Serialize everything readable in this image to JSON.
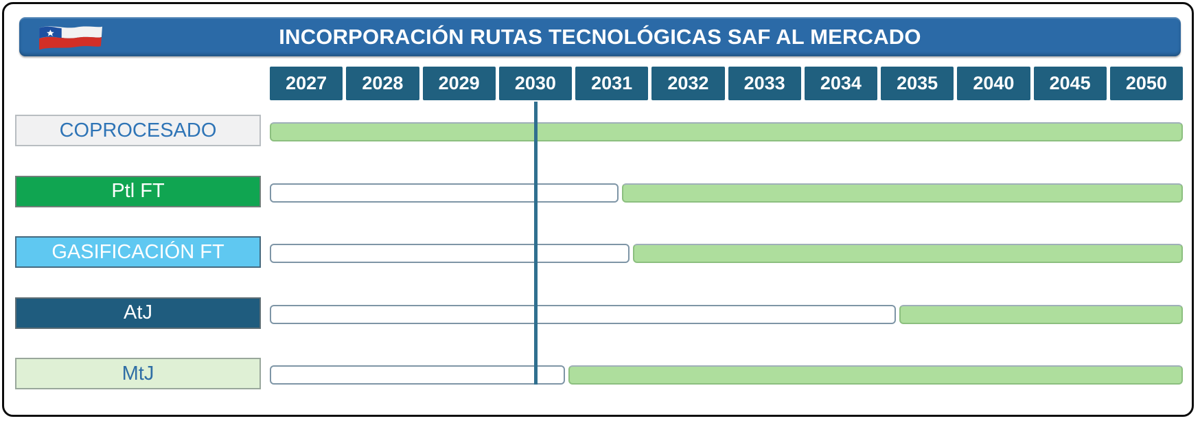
{
  "header": {
    "title": "INCORPORACIÓN  RUTAS TECNOLÓGICAS SAF AL MERCADO",
    "flag": "chile-flag",
    "bar_color": "#2B6AA7",
    "text_color": "#FFFFFF"
  },
  "timeline": {
    "years": [
      "2027",
      "2028",
      "2029",
      "2030",
      "2031",
      "2032",
      "2033",
      "2034",
      "2035",
      "2040",
      "2045",
      "2050"
    ],
    "cell_color": "#20607F",
    "text_color": "#FFFFFF"
  },
  "chart_data": {
    "type": "gantt",
    "title": "INCORPORACIÓN RUTAS TECNOLÓGICAS SAF AL MERCADO",
    "x_categories": [
      "2027",
      "2028",
      "2029",
      "2030",
      "2031",
      "2032",
      "2033",
      "2034",
      "2035",
      "2040",
      "2045",
      "2050"
    ],
    "x_axis_note": "equal-width category columns; col units: 0 = left edge of 2027 column, 12 = right edge of 2050 column",
    "legend": null,
    "milestone_line": {
      "label": "2030",
      "at_col": 3.5,
      "color": "#2F6F8F"
    },
    "bar_styles": {
      "pending": {
        "fill": "#FFFFFF",
        "border": "#7E95A6"
      },
      "in_market": {
        "fill": "#AEDE9D",
        "border": "#8CBF7F",
        "border_top": "#9FAFB9"
      }
    },
    "series": [
      {
        "label": "COPROCESADO",
        "label_style": {
          "bg": "#F1F1F2",
          "text": "#2E74B6",
          "border": "#B8BDC1"
        },
        "segments": [
          {
            "state": "in_market",
            "from_col": 0,
            "to_col": 12
          }
        ]
      },
      {
        "label": "Ptl FT",
        "label_style": {
          "bg": "#10A551",
          "text": "#FFFFFF",
          "border": "#6F7E78"
        },
        "segments": [
          {
            "state": "pending",
            "from_col": 0,
            "to_col": 4.6
          },
          {
            "state": "in_market",
            "from_col": 4.6,
            "to_col": 12
          }
        ]
      },
      {
        "label": "GASIFICACIÓN FT",
        "label_style": {
          "bg": "#5FC8F1",
          "text": "#FFFFFF",
          "border": "#45697E"
        },
        "segments": [
          {
            "state": "pending",
            "from_col": 0,
            "to_col": 4.75
          },
          {
            "state": "in_market",
            "from_col": 4.75,
            "to_col": 12
          }
        ]
      },
      {
        "label": "AtJ",
        "label_style": {
          "bg": "#1F5C7E",
          "text": "#FFFFFF",
          "border": "#5F6E75"
        },
        "segments": [
          {
            "state": "pending",
            "from_col": 0,
            "to_col": 8.25
          },
          {
            "state": "in_market",
            "from_col": 8.25,
            "to_col": 12
          }
        ]
      },
      {
        "label": "MtJ",
        "label_style": {
          "bg": "#DFF0D5",
          "text": "#2F6EA5",
          "border": "#99A79B"
        },
        "segments": [
          {
            "state": "pending",
            "from_col": 0,
            "to_col": 3.9
          },
          {
            "state": "in_market",
            "from_col": 3.9,
            "to_col": 12
          }
        ]
      }
    ]
  }
}
